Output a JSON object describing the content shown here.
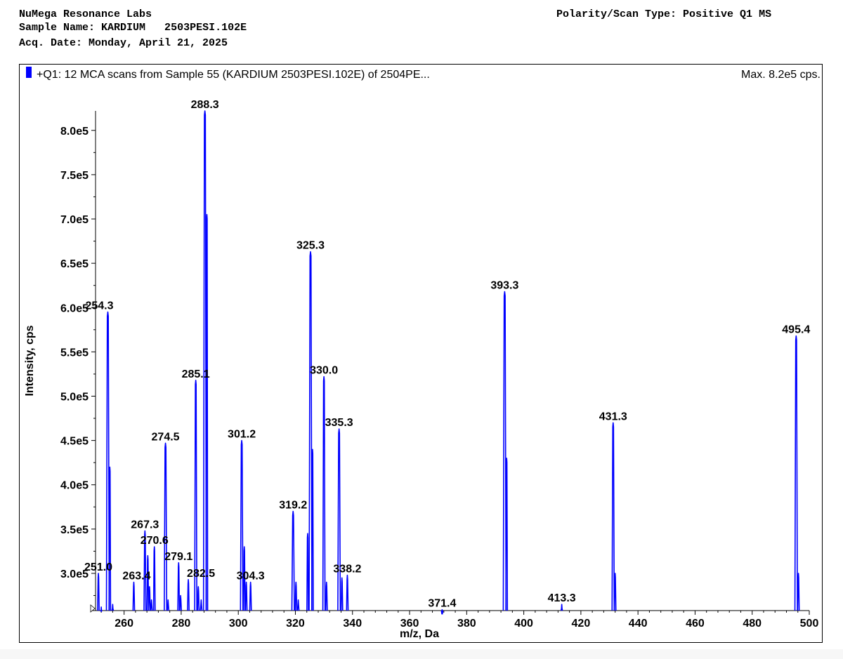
{
  "header": {
    "lab": "NuMega Resonance Labs",
    "sample_label": "Sample Name:",
    "sample_name": "KARDIUM   2503PESI.102E",
    "acq_label": "Acq. Date:",
    "acq_date": "Monday, April 21, 2025",
    "polarity_label": "Polarity/Scan Type:",
    "polarity": "Positive Q1 MS"
  },
  "colors": {
    "trace": "#0000ff",
    "text": "#000000",
    "frame": "#000000"
  },
  "chart_data": {
    "type": "line",
    "title": "+Q1: 12 MCA scans from Sample 55 (KARDIUM   2503PESI.102E) of 2504PE...",
    "max_label": "Max. 8.2e5 cps.",
    "xlabel": "m/z, Da",
    "ylabel": "Intensity, cps",
    "xlim": [
      250,
      500
    ],
    "ylim": [
      258000,
      822000
    ],
    "x_ticks": [
      260,
      280,
      300,
      320,
      340,
      360,
      380,
      400,
      420,
      440,
      460,
      480,
      500
    ],
    "y_ticks": [
      {
        "value": 300000,
        "label": "3.0e5"
      },
      {
        "value": 350000,
        "label": "3.5e5"
      },
      {
        "value": 400000,
        "label": "4.0e5"
      },
      {
        "value": 450000,
        "label": "4.5e5"
      },
      {
        "value": 500000,
        "label": "5.0e5"
      },
      {
        "value": 550000,
        "label": "5.5e5"
      },
      {
        "value": 600000,
        "label": "6.0e5"
      },
      {
        "value": 650000,
        "label": "6.5e5"
      },
      {
        "value": 700000,
        "label": "7.0e5"
      },
      {
        "value": 750000,
        "label": "7.5e5"
      },
      {
        "value": 800000,
        "label": "8.0e5"
      }
    ],
    "grid": false,
    "legend": "top-left",
    "peaks": [
      {
        "mz": 251.0,
        "intensity": 300000,
        "label": "251.0",
        "width": 0.5
      },
      {
        "mz": 252.0,
        "intensity": 262000,
        "width": 0.4
      },
      {
        "mz": 254.3,
        "intensity": 595000,
        "label": "254.3",
        "width": 0.9
      },
      {
        "mz": 255.0,
        "intensity": 420000,
        "width": 0.4
      },
      {
        "mz": 256.0,
        "intensity": 265000,
        "width": 0.4
      },
      {
        "mz": 263.4,
        "intensity": 290000,
        "label": "263.4",
        "width": 0.5
      },
      {
        "mz": 267.3,
        "intensity": 348000,
        "label": "267.3",
        "width": 0.6
      },
      {
        "mz": 268.3,
        "intensity": 320000,
        "width": 0.4
      },
      {
        "mz": 268.9,
        "intensity": 285000,
        "width": 0.3
      },
      {
        "mz": 269.6,
        "intensity": 270000,
        "width": 0.3
      },
      {
        "mz": 270.6,
        "intensity": 330000,
        "label": "270.6",
        "width": 0.5
      },
      {
        "mz": 274.5,
        "intensity": 447000,
        "label": "274.5",
        "width": 0.8
      },
      {
        "mz": 275.4,
        "intensity": 270000,
        "width": 0.3
      },
      {
        "mz": 279.1,
        "intensity": 312000,
        "label": "279.1",
        "width": 0.5
      },
      {
        "mz": 279.8,
        "intensity": 275000,
        "width": 0.3
      },
      {
        "mz": 282.5,
        "intensity": 293000,
        "label": "282.5",
        "width": 0.5
      },
      {
        "mz": 285.1,
        "intensity": 518000,
        "label": "285.1",
        "width": 0.7
      },
      {
        "mz": 286.0,
        "intensity": 285000,
        "width": 0.3
      },
      {
        "mz": 287.0,
        "intensity": 270000,
        "width": 0.3
      },
      {
        "mz": 288.3,
        "intensity": 822000,
        "label": "288.3",
        "width": 0.9
      },
      {
        "mz": 289.0,
        "intensity": 705000,
        "width": 0.4
      },
      {
        "mz": 301.2,
        "intensity": 450000,
        "label": "301.2",
        "width": 0.8
      },
      {
        "mz": 302.1,
        "intensity": 330000,
        "width": 0.3
      },
      {
        "mz": 302.8,
        "intensity": 290000,
        "width": 0.3
      },
      {
        "mz": 304.3,
        "intensity": 290000,
        "label": "304.3",
        "width": 0.4
      },
      {
        "mz": 319.2,
        "intensity": 370000,
        "label": "319.2",
        "width": 0.8
      },
      {
        "mz": 320.2,
        "intensity": 290000,
        "width": 0.3
      },
      {
        "mz": 321.0,
        "intensity": 270000,
        "width": 0.3
      },
      {
        "mz": 324.3,
        "intensity": 345000,
        "width": 0.4
      },
      {
        "mz": 325.3,
        "intensity": 663000,
        "label": "325.3",
        "width": 0.9
      },
      {
        "mz": 326.0,
        "intensity": 440000,
        "width": 0.3
      },
      {
        "mz": 330.0,
        "intensity": 522000,
        "label": "330.0",
        "width": 0.7
      },
      {
        "mz": 330.9,
        "intensity": 290000,
        "width": 0.3
      },
      {
        "mz": 335.3,
        "intensity": 463000,
        "label": "335.3",
        "width": 0.8
      },
      {
        "mz": 336.3,
        "intensity": 295000,
        "width": 0.3
      },
      {
        "mz": 338.2,
        "intensity": 298000,
        "label": "338.2",
        "width": 0.4
      },
      {
        "mz": 371.4,
        "intensity": 259000,
        "label": "371.4",
        "width": 0.3
      },
      {
        "mz": 393.3,
        "intensity": 618000,
        "label": "393.3",
        "width": 0.9
      },
      {
        "mz": 394.0,
        "intensity": 430000,
        "width": 0.3
      },
      {
        "mz": 413.3,
        "intensity": 265000,
        "label": "413.3",
        "width": 0.3
      },
      {
        "mz": 431.3,
        "intensity": 470000,
        "label": "431.3",
        "width": 0.7
      },
      {
        "mz": 432.0,
        "intensity": 300000,
        "width": 0.3
      },
      {
        "mz": 495.4,
        "intensity": 568000,
        "label": "495.4",
        "width": 0.8
      },
      {
        "mz": 496.2,
        "intensity": 300000,
        "width": 0.3
      }
    ]
  }
}
